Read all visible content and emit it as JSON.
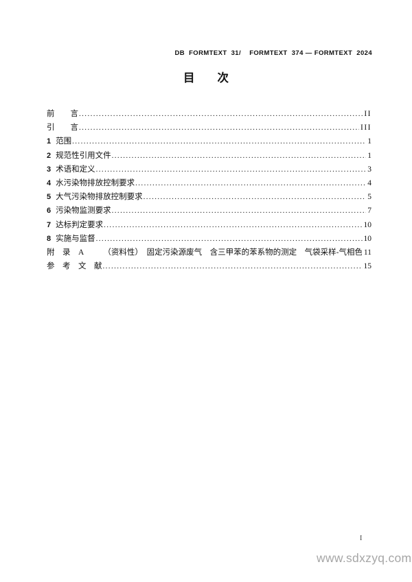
{
  "page": {
    "header": "DB  FORMTEXT  31/    FORMTEXT  374 — FORMTEXT  2024",
    "title": "目　　次",
    "footer_page_number": "I",
    "watermark": "www.sdxzyq.com"
  },
  "toc": {
    "entries": [
      {
        "num": "",
        "label": "前　　言",
        "page": "II"
      },
      {
        "num": "",
        "label": "引　　言",
        "page": "III"
      },
      {
        "num": "1",
        "label": "范围",
        "page": "1"
      },
      {
        "num": "2",
        "label": "规范性引用文件",
        "page": "1"
      },
      {
        "num": "3",
        "label": "术语和定义",
        "page": "3"
      },
      {
        "num": "4",
        "label": "水污染物排放控制要求",
        "page": "4"
      },
      {
        "num": "5",
        "label": "大气污染物排放控制要求",
        "page": "5"
      },
      {
        "num": "6",
        "label": "污染物监测要求",
        "page": "7"
      },
      {
        "num": "7",
        "label": "达标判定要求",
        "page": "10"
      },
      {
        "num": "8",
        "label": "实施与监督",
        "page": "10"
      },
      {
        "num": "",
        "label": "附　录　A　　　（资料性）　固定污染源废气　含三甲苯的苯系物的测定　气袋采样-气相色谱法",
        "page": "11"
      },
      {
        "num": "",
        "label": "参　考　文　献",
        "page": "15"
      }
    ]
  },
  "colors": {
    "text": "#111111",
    "watermark": "#a6a6a6",
    "background": "#ffffff"
  }
}
